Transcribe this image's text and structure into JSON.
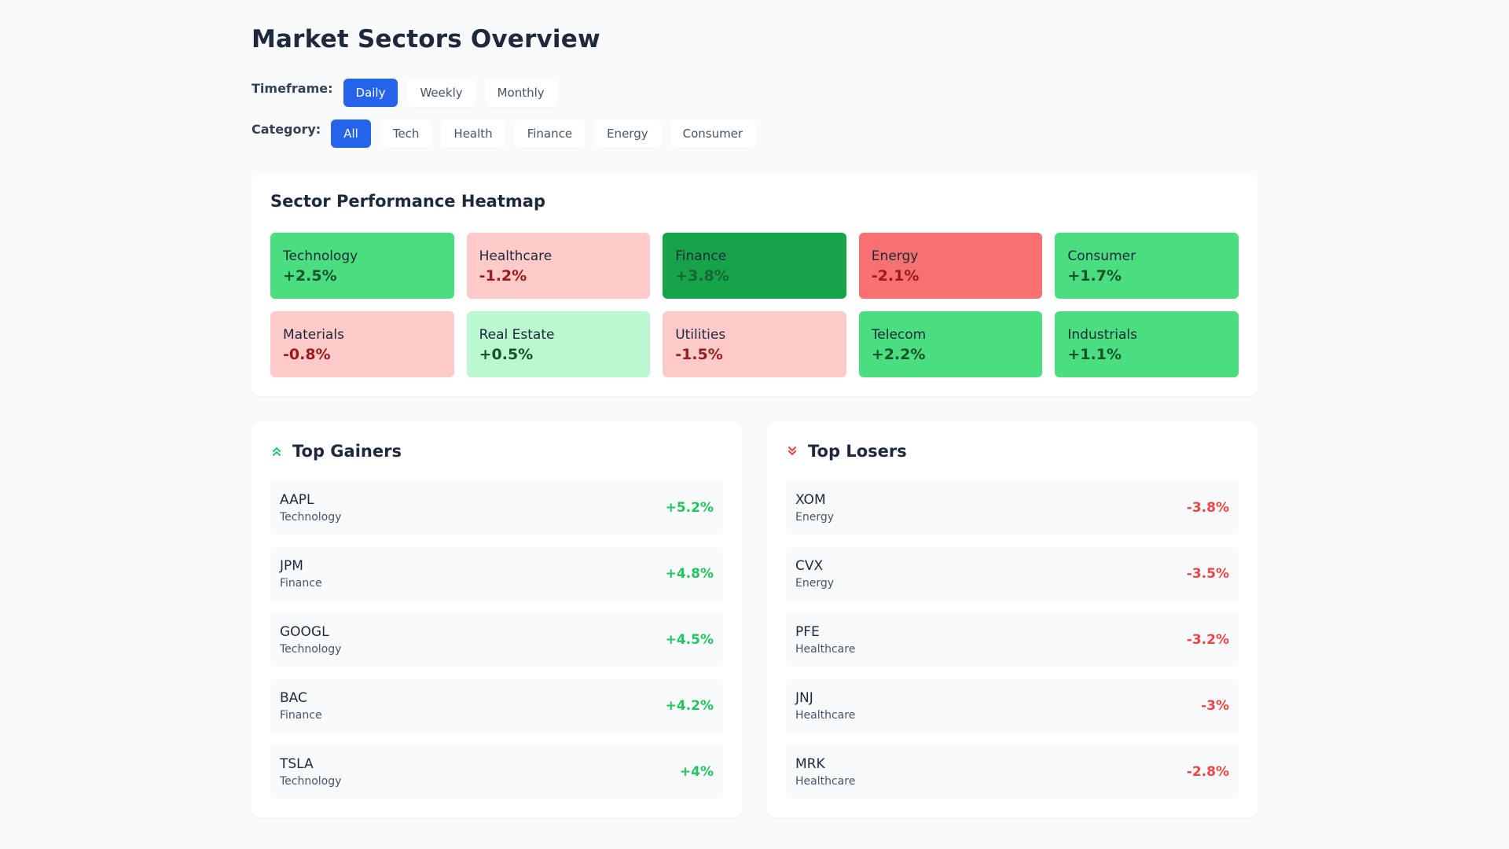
{
  "page": {
    "title": "Market Sectors Overview"
  },
  "filters": {
    "timeframe": {
      "label": "Timeframe:",
      "options": [
        "Daily",
        "Weekly",
        "Monthly"
      ],
      "selected": "Daily"
    },
    "category": {
      "label": "Category:",
      "options": [
        "All",
        "Tech",
        "Health",
        "Finance",
        "Energy",
        "Consumer"
      ],
      "selected": "All"
    }
  },
  "heatmap": {
    "title": "Sector Performance Heatmap",
    "tiles": [
      {
        "name": "Technology",
        "change": "+2.5%",
        "bg": "#4ade80",
        "fg": "#14532d"
      },
      {
        "name": "Healthcare",
        "change": "-1.2%",
        "bg": "#fecaca",
        "fg": "#991b1b"
      },
      {
        "name": "Finance",
        "change": "+3.8%",
        "bg": "#16a34a",
        "fg": "#166534"
      },
      {
        "name": "Energy",
        "change": "-2.1%",
        "bg": "#f87171",
        "fg": "#991b1b"
      },
      {
        "name": "Consumer",
        "change": "+1.7%",
        "bg": "#4ade80",
        "fg": "#14532d"
      },
      {
        "name": "Materials",
        "change": "-0.8%",
        "bg": "#fecaca",
        "fg": "#991b1b"
      },
      {
        "name": "Real Estate",
        "change": "+0.5%",
        "bg": "#bbf7d0",
        "fg": "#14532d"
      },
      {
        "name": "Utilities",
        "change": "-1.5%",
        "bg": "#fecaca",
        "fg": "#991b1b"
      },
      {
        "name": "Telecom",
        "change": "+2.2%",
        "bg": "#4ade80",
        "fg": "#14532d"
      },
      {
        "name": "Industrials",
        "change": "+1.1%",
        "bg": "#4ade80",
        "fg": "#14532d"
      }
    ]
  },
  "gainers": {
    "title": "Top Gainers",
    "icon": "double-chevron-up-icon",
    "color": "#22c55e",
    "items": [
      {
        "symbol": "AAPL",
        "sector": "Technology",
        "change": "+5.2%"
      },
      {
        "symbol": "JPM",
        "sector": "Finance",
        "change": "+4.8%"
      },
      {
        "symbol": "GOOGL",
        "sector": "Technology",
        "change": "+4.5%"
      },
      {
        "symbol": "BAC",
        "sector": "Finance",
        "change": "+4.2%"
      },
      {
        "symbol": "TSLA",
        "sector": "Technology",
        "change": "+4%"
      }
    ]
  },
  "losers": {
    "title": "Top Losers",
    "icon": "double-chevron-down-icon",
    "color": "#ef4444",
    "items": [
      {
        "symbol": "XOM",
        "sector": "Energy",
        "change": "-3.8%"
      },
      {
        "symbol": "CVX",
        "sector": "Energy",
        "change": "-3.5%"
      },
      {
        "symbol": "PFE",
        "sector": "Healthcare",
        "change": "-3.2%"
      },
      {
        "symbol": "JNJ",
        "sector": "Healthcare",
        "change": "-3%"
      },
      {
        "symbol": "MRK",
        "sector": "Healthcare",
        "change": "-2.8%"
      }
    ]
  },
  "colors": {
    "accent": "#2563eb"
  }
}
